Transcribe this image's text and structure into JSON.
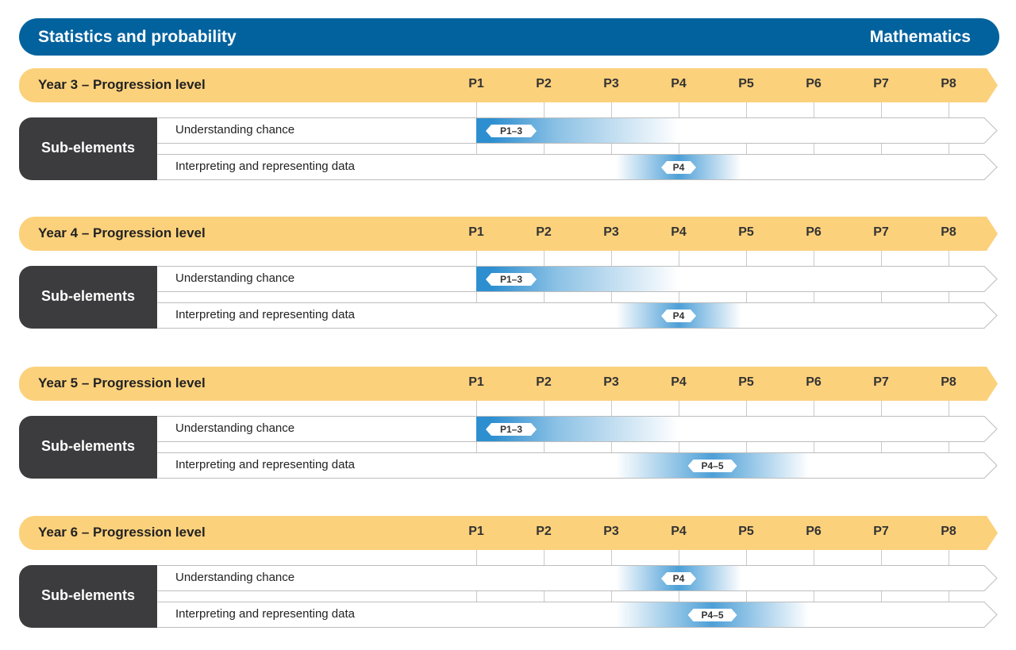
{
  "header": {
    "title": "Statistics and probability",
    "subject": "Mathematics"
  },
  "levels": [
    "P1",
    "P2",
    "P3",
    "P4",
    "P5",
    "P6",
    "P7",
    "P8"
  ],
  "sub_elements_label": "Sub-elements",
  "colors": {
    "header": "#02629e",
    "year_bar": "#fcd17c",
    "panel": "#3c3c3e",
    "band": "#2e8fd0"
  },
  "years": [
    {
      "label": "Year 3 – Progression level",
      "rows": [
        {
          "label": "Understanding chance",
          "badge": "P1–3",
          "from": 1,
          "to": 3
        },
        {
          "label": "Interpreting and representing data",
          "badge": "P4",
          "from": 4,
          "to": 4
        }
      ]
    },
    {
      "label": "Year 4 – Progression level",
      "rows": [
        {
          "label": "Understanding chance",
          "badge": "P1–3",
          "from": 1,
          "to": 3
        },
        {
          "label": "Interpreting and representing data",
          "badge": "P4",
          "from": 4,
          "to": 4
        }
      ]
    },
    {
      "label": "Year 5 – Progression level",
      "rows": [
        {
          "label": "Understanding chance",
          "badge": "P1–3",
          "from": 1,
          "to": 3
        },
        {
          "label": "Interpreting and representing data",
          "badge": "P4–5",
          "from": 4,
          "to": 5
        }
      ]
    },
    {
      "label": "Year 6 – Progression level",
      "rows": [
        {
          "label": "Understanding chance",
          "badge": "P4",
          "from": 4,
          "to": 4
        },
        {
          "label": "Interpreting and representing data",
          "badge": "P4–5",
          "from": 4,
          "to": 5
        }
      ]
    }
  ]
}
